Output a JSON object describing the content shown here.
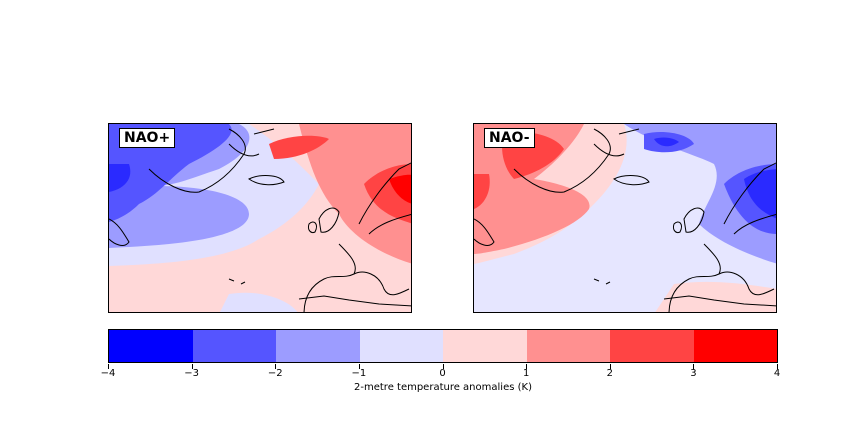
{
  "panels": [
    {
      "label": "NAO+"
    },
    {
      "label": "NAO-"
    }
  ],
  "colorbar": {
    "label": "2-metre temperature anomalies (K)",
    "ticks": [
      "−4",
      "−3",
      "−2",
      "−1",
      "0",
      "1",
      "2",
      "3",
      "4"
    ],
    "colors": [
      "#0000ff",
      "#5555ff",
      "#9c9cff",
      "#e0e0ff",
      "#ffd8d8",
      "#ff9090",
      "#ff4444",
      "#ff0000"
    ]
  },
  "map_colors": {
    "light_blue": "#e6e6ff",
    "mid_blue": "#9c9cff",
    "blue": "#5555ff",
    "dark_blue": "#2a2aff",
    "light_red": "#ffd8d8",
    "mid_red": "#ff9090",
    "red": "#ff4444",
    "coast": "#000000"
  }
}
